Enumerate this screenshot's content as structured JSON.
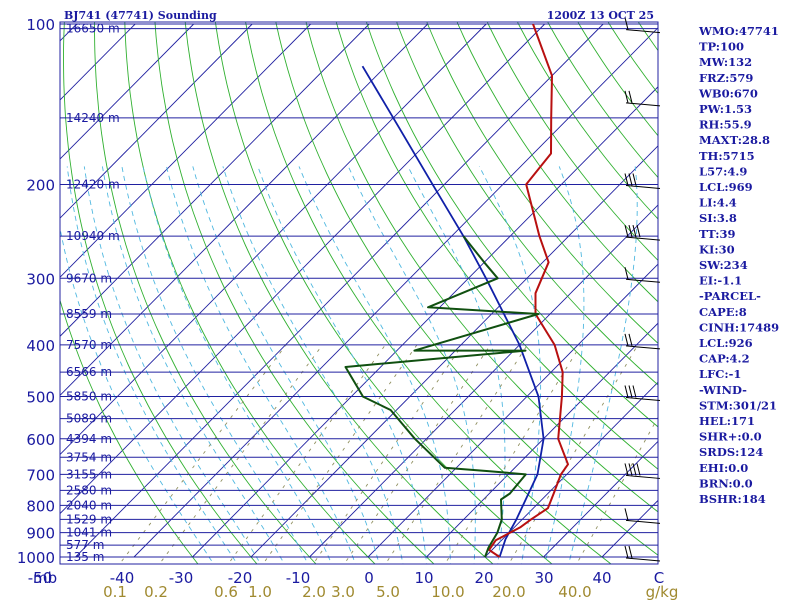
{
  "header": {
    "station": "BJ741 (47741) Sounding",
    "time": "1200Z 13 OCT 25"
  },
  "chart_data": {
    "type": "line",
    "chart_kind": "skew-T log-P sounding",
    "y_scale": "log",
    "ylim": [
      1000,
      100
    ],
    "xlim": [
      -50,
      50
    ],
    "pressure_ticks": [
      100,
      200,
      300,
      400,
      500,
      600,
      700,
      800,
      900,
      1000
    ],
    "temperature_ticks": [
      "mb",
      "-50",
      "-40",
      "-30",
      "-20",
      "-10",
      "0",
      "10",
      "20",
      "30",
      "40",
      "C"
    ],
    "mixing_ratio_ticks": [
      "0.1",
      "0.2",
      "0.6",
      "1.0",
      "2.0",
      "3.0",
      "5.0",
      "10.0",
      "20.0",
      "40.0",
      "g/kg"
    ],
    "heights": [
      {
        "p": 102,
        "label": "16650 m"
      },
      {
        "p": 150,
        "label": "14240 m"
      },
      {
        "p": 200,
        "label": "12420 m"
      },
      {
        "p": 250,
        "label": "10940 m"
      },
      {
        "p": 300,
        "label": "9670 m"
      },
      {
        "p": 350,
        "label": "8559 m"
      },
      {
        "p": 400,
        "label": "7570 m"
      },
      {
        "p": 450,
        "label": "6566 m"
      },
      {
        "p": 500,
        "label": "5850 m"
      },
      {
        "p": 550,
        "label": "5089 m"
      },
      {
        "p": 600,
        "label": "4394 m"
      },
      {
        "p": 650,
        "label": "3754 m"
      },
      {
        "p": 700,
        "label": "3155 m"
      },
      {
        "p": 750,
        "label": "2580 m"
      },
      {
        "p": 800,
        "label": "2040 m"
      },
      {
        "p": 850,
        "label": "1529 m"
      },
      {
        "p": 900,
        "label": "1041 m"
      },
      {
        "p": 950,
        "label": "577 m"
      },
      {
        "p": 1000,
        "label": "135 m"
      }
    ],
    "temperature_profile": [
      {
        "p": 1000,
        "t": 22.5
      },
      {
        "p": 970,
        "t": 19.5
      },
      {
        "p": 930,
        "t": 19.0
      },
      {
        "p": 880,
        "t": 21.0
      },
      {
        "p": 850,
        "t": 21.5
      },
      {
        "p": 810,
        "t": 22.5
      },
      {
        "p": 760,
        "t": 21.0
      },
      {
        "p": 700,
        "t": 19.0
      },
      {
        "p": 670,
        "t": 18.5
      },
      {
        "p": 600,
        "t": 12.5
      },
      {
        "p": 500,
        "t": 6.0
      },
      {
        "p": 450,
        "t": 2.0
      },
      {
        "p": 400,
        "t": -4.0
      },
      {
        "p": 350,
        "t": -12.5
      },
      {
        "p": 320,
        "t": -16.0
      },
      {
        "p": 280,
        "t": -19.0
      },
      {
        "p": 250,
        "t": -25.0
      },
      {
        "p": 200,
        "t": -36.0
      },
      {
        "p": 175,
        "t": -37.0
      },
      {
        "p": 150,
        "t": -43.0
      },
      {
        "p": 125,
        "t": -50.0
      },
      {
        "p": 100,
        "t": -62.0
      }
    ],
    "dewpoint_profile": [
      {
        "p": 1000,
        "t": 20.0
      },
      {
        "p": 960,
        "t": 19.0
      },
      {
        "p": 900,
        "t": 18.0
      },
      {
        "p": 850,
        "t": 16.5
      },
      {
        "p": 780,
        "t": 13.0
      },
      {
        "p": 760,
        "t": 13.5
      },
      {
        "p": 700,
        "t": 13.0
      },
      {
        "p": 690,
        "t": 6.0
      },
      {
        "p": 680,
        "t": -2.0
      },
      {
        "p": 600,
        "t": -12.0
      },
      {
        "p": 530,
        "t": -21.0
      },
      {
        "p": 500,
        "t": -28.0
      },
      {
        "p": 440,
        "t": -36.0
      },
      {
        "p": 410,
        "t": -8.0
      },
      {
        "p": 410,
        "t": -27.0
      },
      {
        "p": 350,
        "t": -12.0
      },
      {
        "p": 340,
        "t": -32.0
      },
      {
        "p": 300,
        "t": -25.0
      },
      {
        "p": 280,
        "t": -30.0
      },
      {
        "p": 250,
        "t": -38.0
      }
    ],
    "parcel_profile": [
      {
        "p": 1000,
        "t": 22.5
      },
      {
        "p": 926,
        "t": 20.5
      },
      {
        "p": 850,
        "t": 19.0
      },
      {
        "p": 700,
        "t": 15.0
      },
      {
        "p": 600,
        "t": 10.0
      },
      {
        "p": 500,
        "t": 2.0
      },
      {
        "p": 400,
        "t": -10.0
      },
      {
        "p": 300,
        "t": -27.0
      },
      {
        "p": 250,
        "t": -38.0
      },
      {
        "p": 200,
        "t": -52.0
      },
      {
        "p": 150,
        "t": -70.0
      },
      {
        "p": 120,
        "t": -84.0
      }
    ]
  },
  "indices": [
    "WMO:47741",
    "TP:100",
    "MW:132",
    "FRZ:579",
    "WB0:670",
    "PW:1.53",
    "RH:55.9",
    "MAXT:28.8",
    "TH:5715",
    "L57:4.9",
    "LCL:969",
    "LI:4.4",
    "SI:3.8",
    "TT:39",
    "KI:30",
    "SW:234",
    "EI:-1.1",
    "-PARCEL-",
    "CAPE:8",
    "CINH:17489",
    "LCL:926",
    "CAP:4.2",
    "LFC:-1",
    "-WIND-",
    "STM:301/21",
    "HEL:171",
    "SHR+:0.0",
    "SRDS:124",
    "EHI:0.0",
    "BRN:0.0",
    "BSHR:184"
  ],
  "colors": {
    "frame": "#2020a0",
    "temperature": "#b81010",
    "dewpoint": "#105010",
    "parcel": "#1020a8",
    "dry_adiabat": "#30b030",
    "moist_adiabat": "#50b8e0",
    "mixing_ratio": "#909060"
  }
}
